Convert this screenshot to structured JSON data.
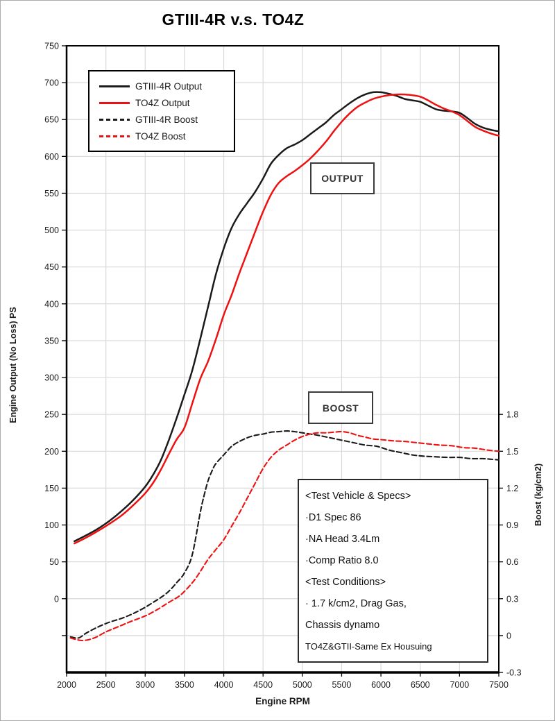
{
  "title": "GTIII-4R v.s. TO4Z",
  "colors": {
    "black_series": "#1a1a1a",
    "red_series": "#ee1111",
    "grid": "#d9d9d9",
    "axis": "#000000",
    "text": "#1a1a1a"
  },
  "legend": {
    "items": [
      {
        "label": "GTIII-4R Output",
        "style": "solid",
        "color": "#1a1a1a"
      },
      {
        "label": "TO4Z Output",
        "style": "solid",
        "color": "#ee1111"
      },
      {
        "label": "GTIII-4R Boost",
        "style": "dashed",
        "color": "#1a1a1a"
      },
      {
        "label": "TO4Z Boost",
        "style": "dashed",
        "color": "#ee1111"
      }
    ]
  },
  "callouts": {
    "output": "OUTPUT",
    "boost": "BOOST"
  },
  "specs_box": {
    "lines": [
      "<Test Vehicle & Specs>",
      "·D1 Spec 86",
      "·NA Head 3.4Lm",
      "·Comp Ratio 8.0",
      "<Test Conditions>",
      "· 1.7 k/cm2, Drag Gas,",
      " Chassis dynamo",
      "TO4Z&GTII-Same Ex Housuing"
    ]
  },
  "chart_data": {
    "type": "line",
    "title": "GTIII-4R v.s. TO4Z",
    "xlabel": "Engine RPM",
    "ylabel_left": "Engine Output (No Loss) PS",
    "ylabel_right": "Boost (kg/cm2)",
    "grid": true,
    "legend_position": "top-left",
    "xlim": [
      2000,
      7500
    ],
    "ylim_left": [
      -100,
      750
    ],
    "x_ticks": [
      2000,
      2500,
      3000,
      3500,
      4000,
      4500,
      5000,
      5500,
      6000,
      6500,
      7000,
      7500
    ],
    "left_ticks": [
      0,
      50,
      100,
      150,
      200,
      250,
      300,
      350,
      400,
      450,
      500,
      550,
      600,
      650,
      700,
      750
    ],
    "left_grid_values": [
      -50,
      0,
      50,
      100,
      150,
      200,
      250,
      300,
      350,
      400,
      450,
      500,
      550,
      600,
      650,
      700,
      750
    ],
    "right_ticks": [
      -0.3,
      0,
      0.3,
      0.6,
      0.9,
      1.2,
      1.5,
      1.8
    ],
    "right_axis": {
      "ps_per_unit": 166.6667,
      "ps_at_zero_boost": -50
    },
    "series": [
      {
        "name": "GTIII-4R Output",
        "axis": "left",
        "color": "#1a1a1a",
        "style": "solid",
        "points": [
          [
            2100,
            78
          ],
          [
            2250,
            86
          ],
          [
            2400,
            95
          ],
          [
            2550,
            106
          ],
          [
            2700,
            119
          ],
          [
            2850,
            134
          ],
          [
            3000,
            152
          ],
          [
            3100,
            168
          ],
          [
            3200,
            188
          ],
          [
            3300,
            215
          ],
          [
            3400,
            245
          ],
          [
            3500,
            277
          ],
          [
            3600,
            310
          ],
          [
            3700,
            352
          ],
          [
            3800,
            396
          ],
          [
            3900,
            440
          ],
          [
            4000,
            475
          ],
          [
            4100,
            503
          ],
          [
            4200,
            522
          ],
          [
            4300,
            537
          ],
          [
            4400,
            552
          ],
          [
            4500,
            570
          ],
          [
            4600,
            590
          ],
          [
            4700,
            602
          ],
          [
            4800,
            611
          ],
          [
            4900,
            616
          ],
          [
            5000,
            622
          ],
          [
            5100,
            630
          ],
          [
            5200,
            638
          ],
          [
            5300,
            646
          ],
          [
            5400,
            656
          ],
          [
            5500,
            664
          ],
          [
            5600,
            672
          ],
          [
            5700,
            679
          ],
          [
            5800,
            684
          ],
          [
            5900,
            687
          ],
          [
            6000,
            687
          ],
          [
            6100,
            685
          ],
          [
            6200,
            682
          ],
          [
            6300,
            678
          ],
          [
            6400,
            676
          ],
          [
            6500,
            674
          ],
          [
            6600,
            669
          ],
          [
            6700,
            664
          ],
          [
            6800,
            662
          ],
          [
            6900,
            661
          ],
          [
            7000,
            659
          ],
          [
            7100,
            652
          ],
          [
            7200,
            644
          ],
          [
            7300,
            639
          ],
          [
            7400,
            636
          ],
          [
            7500,
            634
          ]
        ]
      },
      {
        "name": "TO4Z Output",
        "axis": "left",
        "color": "#ee1111",
        "style": "solid",
        "points": [
          [
            2100,
            75
          ],
          [
            2250,
            83
          ],
          [
            2400,
            92
          ],
          [
            2550,
            102
          ],
          [
            2700,
            113
          ],
          [
            2850,
            127
          ],
          [
            3000,
            143
          ],
          [
            3100,
            157
          ],
          [
            3200,
            175
          ],
          [
            3300,
            196
          ],
          [
            3400,
            216
          ],
          [
            3500,
            232
          ],
          [
            3600,
            265
          ],
          [
            3700,
            298
          ],
          [
            3800,
            322
          ],
          [
            3900,
            352
          ],
          [
            4000,
            385
          ],
          [
            4100,
            412
          ],
          [
            4200,
            442
          ],
          [
            4300,
            470
          ],
          [
            4400,
            498
          ],
          [
            4500,
            525
          ],
          [
            4600,
            548
          ],
          [
            4700,
            564
          ],
          [
            4800,
            573
          ],
          [
            4900,
            580
          ],
          [
            5000,
            588
          ],
          [
            5100,
            597
          ],
          [
            5200,
            608
          ],
          [
            5300,
            620
          ],
          [
            5400,
            634
          ],
          [
            5500,
            647
          ],
          [
            5600,
            658
          ],
          [
            5700,
            667
          ],
          [
            5800,
            673
          ],
          [
            5900,
            678
          ],
          [
            6000,
            681
          ],
          [
            6100,
            683
          ],
          [
            6200,
            684
          ],
          [
            6300,
            684
          ],
          [
            6400,
            683
          ],
          [
            6500,
            681
          ],
          [
            6600,
            676
          ],
          [
            6700,
            670
          ],
          [
            6800,
            665
          ],
          [
            6900,
            661
          ],
          [
            7000,
            656
          ],
          [
            7100,
            648
          ],
          [
            7200,
            640
          ],
          [
            7300,
            635
          ],
          [
            7400,
            631
          ],
          [
            7500,
            628
          ]
        ]
      },
      {
        "name": "GTIII-4R Boost",
        "axis": "right",
        "color": "#1a1a1a",
        "style": "dashed",
        "points": [
          [
            2050,
            -0.01
          ],
          [
            2150,
            -0.02
          ],
          [
            2250,
            0.02
          ],
          [
            2400,
            0.07
          ],
          [
            2550,
            0.11
          ],
          [
            2700,
            0.14
          ],
          [
            2850,
            0.18
          ],
          [
            3000,
            0.23
          ],
          [
            3100,
            0.27
          ],
          [
            3200,
            0.31
          ],
          [
            3300,
            0.36
          ],
          [
            3400,
            0.43
          ],
          [
            3500,
            0.51
          ],
          [
            3600,
            0.66
          ],
          [
            3700,
            1.0
          ],
          [
            3750,
            1.14
          ],
          [
            3800,
            1.26
          ],
          [
            3850,
            1.34
          ],
          [
            3900,
            1.4
          ],
          [
            4000,
            1.47
          ],
          [
            4100,
            1.54
          ],
          [
            4200,
            1.58
          ],
          [
            4300,
            1.61
          ],
          [
            4400,
            1.63
          ],
          [
            4500,
            1.64
          ],
          [
            4600,
            1.655
          ],
          [
            4700,
            1.66
          ],
          [
            4800,
            1.665
          ],
          [
            4900,
            1.66
          ],
          [
            5000,
            1.65
          ],
          [
            5100,
            1.64
          ],
          [
            5200,
            1.63
          ],
          [
            5350,
            1.61
          ],
          [
            5500,
            1.59
          ],
          [
            5650,
            1.57
          ],
          [
            5800,
            1.55
          ],
          [
            5950,
            1.54
          ],
          [
            6100,
            1.51
          ],
          [
            6250,
            1.49
          ],
          [
            6400,
            1.47
          ],
          [
            6550,
            1.46
          ],
          [
            6700,
            1.455
          ],
          [
            6850,
            1.45
          ],
          [
            7000,
            1.45
          ],
          [
            7150,
            1.44
          ],
          [
            7300,
            1.44
          ],
          [
            7400,
            1.435
          ],
          [
            7500,
            1.43
          ]
        ]
      },
      {
        "name": "TO4Z Boost",
        "axis": "right",
        "color": "#ee1111",
        "style": "dashed",
        "points": [
          [
            2050,
            -0.02
          ],
          [
            2200,
            -0.04
          ],
          [
            2350,
            -0.02
          ],
          [
            2500,
            0.03
          ],
          [
            2650,
            0.07
          ],
          [
            2800,
            0.11
          ],
          [
            3000,
            0.16
          ],
          [
            3150,
            0.21
          ],
          [
            3300,
            0.27
          ],
          [
            3450,
            0.33
          ],
          [
            3600,
            0.43
          ],
          [
            3700,
            0.52
          ],
          [
            3800,
            0.62
          ],
          [
            3900,
            0.7
          ],
          [
            4000,
            0.78
          ],
          [
            4100,
            0.89
          ],
          [
            4200,
            1.0
          ],
          [
            4300,
            1.12
          ],
          [
            4400,
            1.24
          ],
          [
            4500,
            1.36
          ],
          [
            4600,
            1.45
          ],
          [
            4700,
            1.51
          ],
          [
            4800,
            1.55
          ],
          [
            4900,
            1.59
          ],
          [
            5000,
            1.62
          ],
          [
            5100,
            1.64
          ],
          [
            5200,
            1.65
          ],
          [
            5300,
            1.65
          ],
          [
            5400,
            1.655
          ],
          [
            5500,
            1.66
          ],
          [
            5600,
            1.65
          ],
          [
            5700,
            1.63
          ],
          [
            5800,
            1.615
          ],
          [
            5900,
            1.6
          ],
          [
            6000,
            1.595
          ],
          [
            6150,
            1.585
          ],
          [
            6300,
            1.58
          ],
          [
            6450,
            1.57
          ],
          [
            6600,
            1.56
          ],
          [
            6750,
            1.55
          ],
          [
            6900,
            1.545
          ],
          [
            7050,
            1.53
          ],
          [
            7200,
            1.525
          ],
          [
            7350,
            1.51
          ],
          [
            7500,
            1.5
          ]
        ]
      }
    ],
    "annotations": [
      {
        "text": "OUTPUT",
        "approx_position": {
          "rpm": 5200,
          "ps": 565
        }
      },
      {
        "text": "BOOST",
        "approx_position": {
          "rpm": 5150,
          "ps": 260
        }
      }
    ]
  }
}
